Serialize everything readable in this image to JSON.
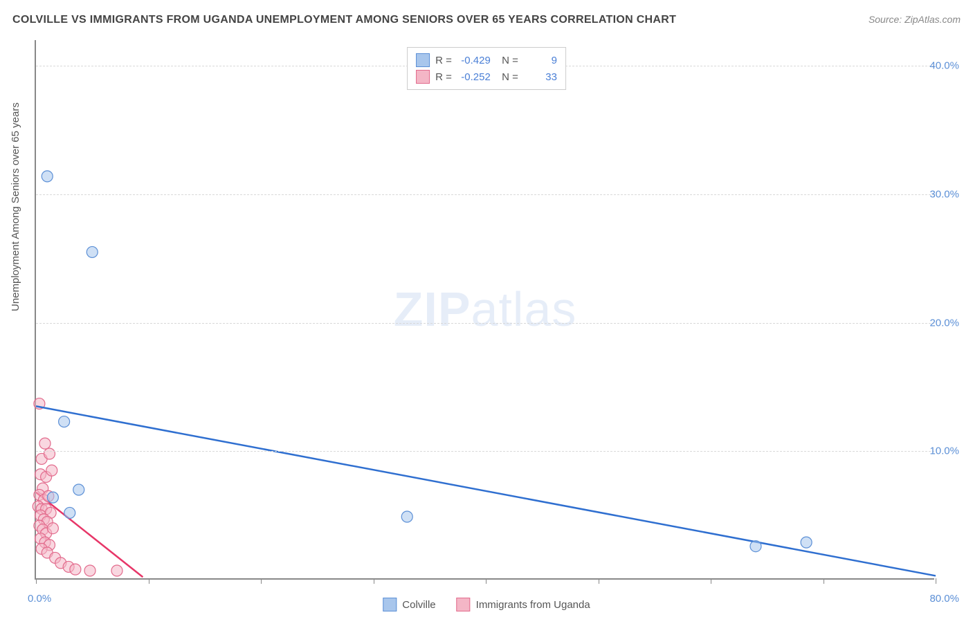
{
  "title": "COLVILLE VS IMMIGRANTS FROM UGANDA UNEMPLOYMENT AMONG SENIORS OVER 65 YEARS CORRELATION CHART",
  "source": "Source: ZipAtlas.com",
  "y_axis_label": "Unemployment Among Seniors over 65 years",
  "watermark_bold": "ZIP",
  "watermark_light": "atlas",
  "chart": {
    "type": "scatter",
    "xlim": [
      0,
      80
    ],
    "ylim": [
      0,
      42
    ],
    "x_ticks": [
      0,
      10,
      20,
      30,
      40,
      50,
      60,
      70,
      80
    ],
    "x_tick_labels": {
      "0": "0.0%",
      "80": "80.0%"
    },
    "y_ticks": [
      10,
      20,
      30,
      40
    ],
    "y_tick_labels": {
      "10": "10.0%",
      "20": "20.0%",
      "30": "30.0%",
      "40": "40.0%"
    },
    "grid_color": "#d8d8d8",
    "axis_color": "#888888",
    "background_color": "#ffffff",
    "marker_radius": 8,
    "marker_opacity": 0.55,
    "marker_stroke_width": 1.2,
    "line_width": 2.5
  },
  "series": [
    {
      "name": "Colville",
      "color_fill": "#a8c6ec",
      "color_stroke": "#5b8fd6",
      "line_color": "#2f6fd0",
      "R": "-0.429",
      "N": "9",
      "points": [
        [
          1.0,
          31.4
        ],
        [
          5.0,
          25.5
        ],
        [
          2.5,
          12.3
        ],
        [
          1.5,
          6.4
        ],
        [
          3.8,
          7.0
        ],
        [
          3.0,
          5.2
        ],
        [
          33.0,
          4.9
        ],
        [
          64.0,
          2.6
        ],
        [
          68.5,
          2.9
        ]
      ],
      "trend": {
        "x1": 0,
        "y1": 13.5,
        "x2": 80,
        "y2": 0.3
      }
    },
    {
      "name": "Immigrants from Uganda",
      "color_fill": "#f4b6c6",
      "color_stroke": "#e26a8c",
      "line_color": "#e73668",
      "R": "-0.252",
      "N": "33",
      "points": [
        [
          0.3,
          13.7
        ],
        [
          0.8,
          10.6
        ],
        [
          0.5,
          9.4
        ],
        [
          1.2,
          9.8
        ],
        [
          0.4,
          8.2
        ],
        [
          0.9,
          8.0
        ],
        [
          0.6,
          7.1
        ],
        [
          1.4,
          8.5
        ],
        [
          0.3,
          6.6
        ],
        [
          0.7,
          6.2
        ],
        [
          1.1,
          6.5
        ],
        [
          0.2,
          5.7
        ],
        [
          0.5,
          5.5
        ],
        [
          0.9,
          5.5
        ],
        [
          1.3,
          5.2
        ],
        [
          0.4,
          5.0
        ],
        [
          0.7,
          4.7
        ],
        [
          1.0,
          4.5
        ],
        [
          0.3,
          4.2
        ],
        [
          0.6,
          3.9
        ],
        [
          0.9,
          3.6
        ],
        [
          1.5,
          4.0
        ],
        [
          0.4,
          3.2
        ],
        [
          0.8,
          2.9
        ],
        [
          1.2,
          2.7
        ],
        [
          0.5,
          2.4
        ],
        [
          1.0,
          2.1
        ],
        [
          1.7,
          1.7
        ],
        [
          2.2,
          1.3
        ],
        [
          2.9,
          1.0
        ],
        [
          3.5,
          0.8
        ],
        [
          4.8,
          0.7
        ],
        [
          7.2,
          0.7
        ]
      ],
      "trend": {
        "x1": 0,
        "y1": 6.8,
        "x2": 9.5,
        "y2": 0.2
      }
    }
  ],
  "legend_bottom": [
    {
      "label": "Colville",
      "fill": "#a8c6ec",
      "stroke": "#5b8fd6"
    },
    {
      "label": "Immigrants from Uganda",
      "fill": "#f4b6c6",
      "stroke": "#e26a8c"
    }
  ]
}
